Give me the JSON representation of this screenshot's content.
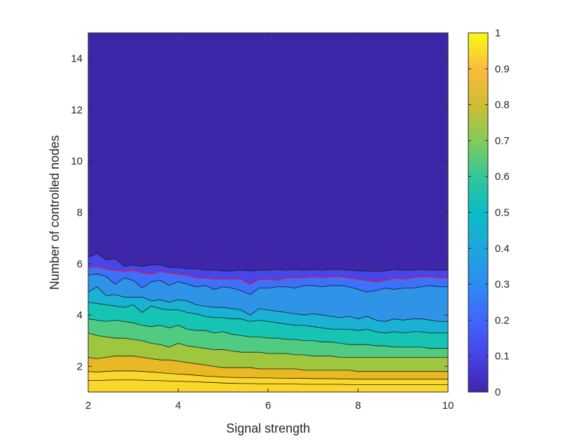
{
  "chart_data": {
    "type": "contour",
    "xlabel": "Signal strength",
    "ylabel": "Number of controlled nodes",
    "xlim": [
      2,
      10
    ],
    "ylim": [
      1,
      15
    ],
    "xticks": [
      2,
      4,
      6,
      8,
      10
    ],
    "yticks": [
      2,
      4,
      6,
      8,
      10,
      12,
      14
    ],
    "colorbar": {
      "range": [
        0,
        1
      ],
      "ticks": [
        0,
        0.1,
        0.2,
        0.3,
        0.4,
        0.5,
        0.6,
        0.7,
        0.8,
        0.9,
        1
      ],
      "tick_labels": [
        "0",
        "0.1",
        "0.2",
        "0.3",
        "0.4",
        "0.5",
        "0.6",
        "0.7",
        "0.8",
        "0.9",
        "1"
      ],
      "colormap": "parula"
    },
    "fill_colors": [
      "#3e26a8",
      "#4746eb",
      "#3b71fc",
      "#2f94e8",
      "#1bb1d5",
      "#16c4b4",
      "#4fcc82",
      "#9ec63f",
      "#e9b825",
      "#f9d72b"
    ],
    "highlight_contour": {
      "level": 0.05,
      "color": "#e8103a"
    },
    "contour_x": [
      2,
      2.2,
      2.4,
      2.6,
      2.8,
      3,
      3.2,
      3.4,
      3.6,
      3.8,
      4,
      4.2,
      4.4,
      4.6,
      4.8,
      5,
      5.2,
      5.4,
      5.6,
      5.8,
      6,
      6.2,
      6.4,
      6.6,
      6.8,
      7,
      7.2,
      7.4,
      7.6,
      7.8,
      8,
      8.2,
      8.4,
      8.6,
      8.8,
      9,
      9.2,
      9.4,
      9.6,
      9.8,
      10
    ],
    "contours": [
      {
        "level": 0.0,
        "y": [
          6.25,
          6.4,
          6.15,
          6.2,
          5.9,
          5.95,
          5.9,
          5.95,
          5.95,
          5.85,
          5.85,
          5.8,
          5.8,
          5.75,
          5.75,
          5.72,
          5.72,
          5.75,
          5.72,
          5.75,
          5.75,
          5.78,
          5.75,
          5.78,
          5.75,
          5.78,
          5.75,
          5.78,
          5.78,
          5.75,
          5.72,
          5.72,
          5.7,
          5.72,
          5.78,
          5.75,
          5.75,
          5.78,
          5.75,
          5.75,
          5.75
        ]
      },
      {
        "level": 0.05,
        "y": [
          5.85,
          5.9,
          5.8,
          5.75,
          5.7,
          5.75,
          5.65,
          5.6,
          5.7,
          5.65,
          5.6,
          5.55,
          5.45,
          5.45,
          5.4,
          5.4,
          5.4,
          5.4,
          5.2,
          5.4,
          5.4,
          5.35,
          5.45,
          5.45,
          5.45,
          5.5,
          5.45,
          5.5,
          5.5,
          5.45,
          5.4,
          5.35,
          5.3,
          5.35,
          5.45,
          5.4,
          5.45,
          5.5,
          5.5,
          5.45,
          5.45
        ]
      },
      {
        "level": 0.1,
        "y": [
          5.55,
          5.6,
          5.5,
          5.2,
          5.45,
          5.35,
          5.05,
          5.3,
          5.35,
          5.15,
          5.3,
          5.2,
          5.1,
          5.15,
          5.0,
          5.1,
          5.05,
          4.95,
          4.8,
          5.05,
          5.05,
          5.1,
          5.1,
          5.05,
          5.15,
          5.15,
          5.1,
          5.15,
          5.15,
          5.1,
          5.0,
          4.9,
          4.95,
          5.05,
          5.0,
          5.05,
          5.05,
          5.1,
          5.15,
          5.1,
          5.1
        ]
      },
      {
        "level": 0.2,
        "y": [
          4.9,
          5.1,
          4.75,
          4.8,
          4.7,
          4.7,
          4.7,
          4.55,
          4.6,
          4.5,
          4.6,
          4.55,
          4.4,
          4.35,
          4.3,
          4.3,
          4.25,
          4.2,
          4.0,
          4.25,
          4.2,
          4.15,
          4.1,
          4.05,
          4.0,
          4.05,
          4.0,
          3.95,
          3.9,
          3.95,
          3.85,
          3.95,
          3.8,
          3.75,
          3.85,
          3.8,
          3.85,
          3.85,
          3.8,
          3.75,
          3.75
        ]
      },
      {
        "level": 0.3,
        "y": [
          4.5,
          4.45,
          4.4,
          4.35,
          4.3,
          4.4,
          4.1,
          4.35,
          4.25,
          4.2,
          4.2,
          4.1,
          4.05,
          3.95,
          3.9,
          3.9,
          3.85,
          3.85,
          3.75,
          3.8,
          3.75,
          3.7,
          3.65,
          3.6,
          3.6,
          3.55,
          3.5,
          3.45,
          3.45,
          3.45,
          3.4,
          3.45,
          3.35,
          3.3,
          3.35,
          3.3,
          3.35,
          3.35,
          3.3,
          3.3,
          3.3
        ]
      },
      {
        "level": 0.4,
        "y": [
          3.85,
          3.8,
          3.75,
          3.8,
          3.75,
          3.7,
          3.6,
          3.55,
          3.6,
          3.5,
          3.6,
          3.45,
          3.4,
          3.4,
          3.3,
          3.35,
          3.25,
          3.2,
          3.15,
          3.15,
          3.1,
          3.1,
          3.05,
          3.05,
          3.0,
          3.0,
          2.95,
          2.95,
          2.9,
          2.85,
          2.85,
          2.85,
          2.8,
          2.8,
          2.75,
          2.75,
          2.75,
          2.75,
          2.7,
          2.7,
          2.7
        ]
      },
      {
        "level": 0.5,
        "y": [
          3.3,
          3.2,
          3.15,
          3.1,
          3.1,
          3.05,
          3.0,
          2.9,
          2.85,
          2.75,
          2.9,
          2.8,
          2.75,
          2.7,
          2.65,
          2.65,
          2.6,
          2.55,
          2.55,
          2.55,
          2.5,
          2.5,
          2.5,
          2.45,
          2.45,
          2.4,
          2.4,
          2.4,
          2.35,
          2.35,
          2.35,
          2.35,
          2.35,
          2.35,
          2.35,
          2.35,
          2.35,
          2.35,
          2.35,
          2.35,
          2.35
        ]
      },
      {
        "level": 0.6,
        "y": [
          2.35,
          2.3,
          2.35,
          2.4,
          2.4,
          2.4,
          2.35,
          2.3,
          2.25,
          2.25,
          2.2,
          2.15,
          2.1,
          2.05,
          2.0,
          1.95,
          1.95,
          1.95,
          1.95,
          1.9,
          1.9,
          1.9,
          1.9,
          1.9,
          1.85,
          1.85,
          1.85,
          1.85,
          1.85,
          1.85,
          1.8,
          1.8,
          1.8,
          1.8,
          1.8,
          1.8,
          1.8,
          1.8,
          1.8,
          1.8,
          1.8
        ]
      },
      {
        "level": 0.7,
        "y": [
          1.8,
          1.78,
          1.8,
          1.82,
          1.82,
          1.82,
          1.8,
          1.78,
          1.75,
          1.72,
          1.7,
          1.68,
          1.65,
          1.62,
          1.6,
          1.58,
          1.57,
          1.56,
          1.56,
          1.55,
          1.55,
          1.54,
          1.54,
          1.53,
          1.53,
          1.52,
          1.52,
          1.52,
          1.51,
          1.51,
          1.5,
          1.5,
          1.5,
          1.5,
          1.5,
          1.5,
          1.5,
          1.5,
          1.5,
          1.5,
          1.5
        ]
      },
      {
        "level": 0.8,
        "y": [
          1.45,
          1.45,
          1.46,
          1.47,
          1.47,
          1.47,
          1.46,
          1.45,
          1.44,
          1.43,
          1.42,
          1.41,
          1.4,
          1.38,
          1.37,
          1.35,
          1.34,
          1.33,
          1.33,
          1.32,
          1.32,
          1.31,
          1.31,
          1.31,
          1.3,
          1.3,
          1.3,
          1.3,
          1.3,
          1.29,
          1.29,
          1.29,
          1.29,
          1.29,
          1.29,
          1.29,
          1.29,
          1.29,
          1.29,
          1.29,
          1.29
        ]
      }
    ]
  }
}
